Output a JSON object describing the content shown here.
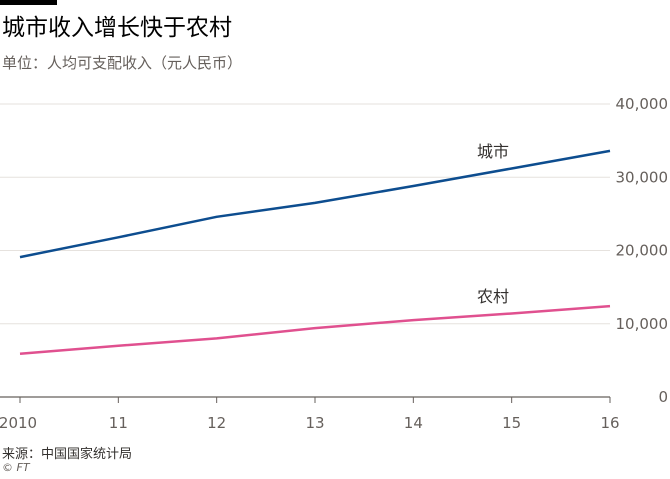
{
  "header": {
    "title": "城市收入增长快于农村",
    "subtitle": "单位：人均可支配收入（元人民币）"
  },
  "footer": {
    "source": "来源：中国国家统计局",
    "copyright": "© FT"
  },
  "colors": {
    "urban": "#0d4d8f",
    "rural": "#e0508f",
    "grid": "#e6e2de",
    "axis": "#66605c"
  },
  "chart_data": {
    "type": "line",
    "title": "城市收入增长快于农村",
    "subtitle": "单位：人均可支配收入（元人民币）",
    "x": [
      2010,
      2011,
      2012,
      2013,
      2014,
      2015,
      2016
    ],
    "x_tick_labels": [
      "2010",
      "11",
      "12",
      "13",
      "14",
      "15",
      "16"
    ],
    "ylim": [
      0,
      40000
    ],
    "y_ticks": [
      0,
      10000,
      20000,
      30000,
      40000
    ],
    "y_tick_labels": [
      "0",
      "10,000",
      "20,000",
      "30,000",
      "40,000"
    ],
    "y_axis_side": "right",
    "grid": true,
    "series": [
      {
        "name": "城市",
        "values": [
          19100,
          21800,
          24600,
          26500,
          28800,
          31200,
          33600
        ]
      },
      {
        "name": "农村",
        "values": [
          5900,
          7000,
          8000,
          9400,
          10500,
          11400,
          12400
        ]
      }
    ]
  }
}
